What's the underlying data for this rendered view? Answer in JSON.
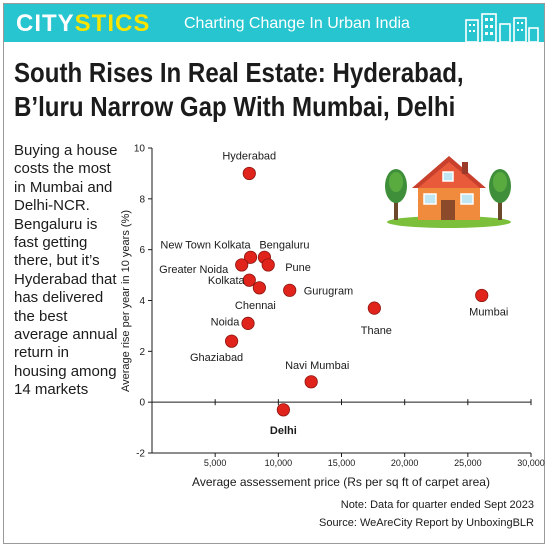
{
  "brand": {
    "part1": "CITY",
    "part2": "STICS"
  },
  "tagline": "Charting Change In Urban India",
  "headline": {
    "line1": "South Rises In Real Estate: Hyderabad,",
    "line2": "B’luru Narrow Gap With Mumbai, Delhi"
  },
  "description": "Buying a house costs the most in Mumbai and Delhi-NCR. Bengaluru is fast getting there, but it’s Hyderabad that has delivered the best average annual return in housing among 14 markets",
  "note": {
    "line1": "Note: Data for quarter ended Sept 2023",
    "line2": "Source: WeAreCity Report by UnboxingBLR"
  },
  "colors": {
    "accent": "#27c5cf",
    "brand_yellow": "#f7e400",
    "point": "#e0241c"
  },
  "icons": [
    "skyline-icon",
    "house-illustration-icon"
  ],
  "chart_data": {
    "type": "scatter",
    "xlabel": "Average assessement price (Rs per sq ft of carpet area)",
    "ylabel": "Average rise per year in 10 years (%)",
    "xlim": [
      0,
      30000
    ],
    "ylim": [
      -2,
      10
    ],
    "xticks": [
      5000,
      10000,
      15000,
      20000,
      25000,
      30000
    ],
    "xtick_labels": [
      "5,000",
      "10,000",
      "15,000",
      "20,000",
      "25,000",
      "30,000"
    ],
    "yticks": [
      -2,
      0,
      2,
      4,
      6,
      8,
      10
    ],
    "grid": false,
    "points": [
      {
        "label": "Hyderabad",
        "x": 7700,
        "y": 9.0
      },
      {
        "label": "New Town Kolkata",
        "x": 7800,
        "y": 5.7
      },
      {
        "label": "Bengaluru",
        "x": 8900,
        "y": 5.7
      },
      {
        "label": "Greater Noida",
        "x": 7100,
        "y": 5.4
      },
      {
        "label": "Pune",
        "x": 9200,
        "y": 5.4
      },
      {
        "label": "Kolkata",
        "x": 7700,
        "y": 4.8
      },
      {
        "label": "Chennai",
        "x": 8500,
        "y": 4.5
      },
      {
        "label": "Gurugram",
        "x": 10900,
        "y": 4.4
      },
      {
        "label": "Noida",
        "x": 7600,
        "y": 3.1
      },
      {
        "label": "Ghaziabad",
        "x": 6300,
        "y": 2.4
      },
      {
        "label": "Thane",
        "x": 17600,
        "y": 3.7
      },
      {
        "label": "Mumbai",
        "x": 26100,
        "y": 4.2
      },
      {
        "label": "Navi Mumbai",
        "x": 12600,
        "y": 0.8
      },
      {
        "label": "Delhi",
        "x": 10400,
        "y": -0.3
      }
    ]
  }
}
